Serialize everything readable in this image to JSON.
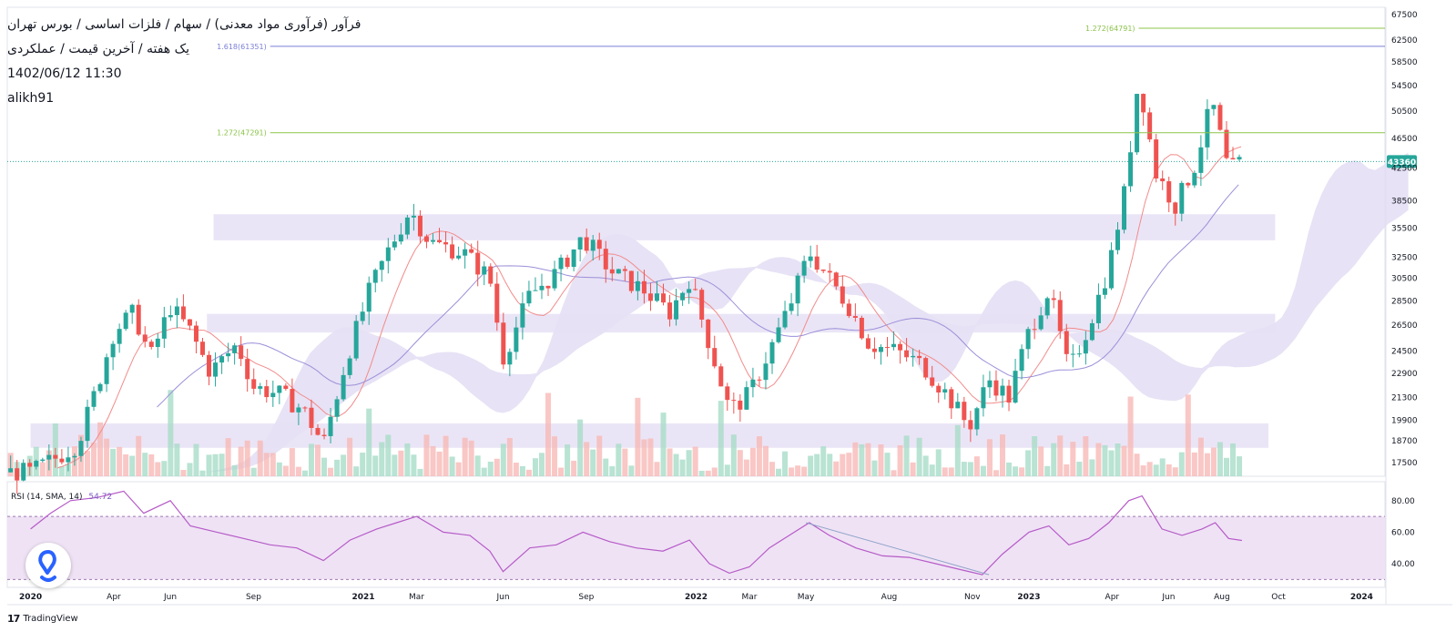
{
  "header": {
    "symbol_path": "فرآور (فرآوری مواد معدنی) / سهام / فلزات اساسی / بورس تهران",
    "interval_line": "یک هفته / آخرین قیمت / عملکردی",
    "timestamp": "1402/06/12 11:30",
    "author": "alikh91"
  },
  "branding": {
    "logo_mark": "17",
    "logo_text": "TradingView"
  },
  "colors": {
    "up": "#26a69a",
    "down": "#ef5350",
    "fib": "#8bc34a",
    "fib_purple": "#7b7fd6",
    "zone": "#e6e0f5",
    "rsi_line": "#b65bc7",
    "rsi_band": "#efe2f5",
    "conversion": "#f28b8b",
    "base": "#9c8fd9",
    "cloud_purple": "#e3ddf3",
    "cloud_red": "#fde3e3",
    "price_tag": "#26a69a"
  },
  "chart_data": [
    {
      "type": "candlestick",
      "timeframe": "weekly",
      "y_axis_ticks": [
        "67500",
        "62500",
        "58500",
        "54500",
        "50500",
        "46500",
        "42500",
        "38500",
        "35500",
        "32500",
        "30500",
        "28500",
        "26500",
        "24500",
        "22900",
        "21300",
        "19900",
        "18700",
        "17500"
      ],
      "y_scale": "log",
      "y_range": [
        16800,
        69000
      ],
      "x_axis_ticks": [
        {
          "label": "2020",
          "t": 2020.0
        },
        {
          "label": "Apr",
          "t": 2020.25
        },
        {
          "label": "Jun",
          "t": 2020.42
        },
        {
          "label": "Sep",
          "t": 2020.67
        },
        {
          "label": "2021",
          "t": 2021.0
        },
        {
          "label": "Mar",
          "t": 2021.16
        },
        {
          "label": "Jun",
          "t": 2021.42
        },
        {
          "label": "Sep",
          "t": 2021.67
        },
        {
          "label": "2022",
          "t": 2022.0
        },
        {
          "label": "Mar",
          "t": 2022.16
        },
        {
          "label": "May",
          "t": 2022.33
        },
        {
          "label": "Aug",
          "t": 2022.58
        },
        {
          "label": "Nov",
          "t": 2022.83
        },
        {
          "label": "2023",
          "t": 2023.0
        },
        {
          "label": "Apr",
          "t": 2023.25
        },
        {
          "label": "Jun",
          "t": 2023.42
        },
        {
          "label": "Aug",
          "t": 2023.58
        },
        {
          "label": "Oct",
          "t": 2023.75
        },
        {
          "label": "2024",
          "t": 2024.0
        }
      ],
      "last_price": "43360",
      "last_price_value": 43360,
      "fib_levels": [
        {
          "label": "1.272(64791)",
          "value": 64791,
          "color": "#8bc34a",
          "from_t": 2023.33
        },
        {
          "label": "1.618(61351)",
          "value": 61351,
          "color": "#7b7fd6",
          "from_t": 2020.72
        },
        {
          "label": "1.272(47291)",
          "value": 47291,
          "color": "#8bc34a",
          "from_t": 2020.72
        }
      ],
      "zones": [
        {
          "from_t": 2020.55,
          "to_t": 2023.74,
          "top": 37000,
          "bottom": 34200
        },
        {
          "from_t": 2020.53,
          "to_t": 2023.74,
          "top": 27400,
          "bottom": 25900
        },
        {
          "from_t": 2020.0,
          "to_t": 2023.72,
          "top": 19700,
          "bottom": 18300
        }
      ],
      "price_path": [
        [
          2020.0,
          17000
        ],
        [
          2020.08,
          17800
        ],
        [
          2020.14,
          18500
        ],
        [
          2020.2,
          22000
        ],
        [
          2020.25,
          26000
        ],
        [
          2020.31,
          27500
        ],
        [
          2020.36,
          24000
        ],
        [
          2020.42,
          28000
        ],
        [
          2020.48,
          26000
        ],
        [
          2020.54,
          23000
        ],
        [
          2020.62,
          25000
        ],
        [
          2020.67,
          22000
        ],
        [
          2020.75,
          21500
        ],
        [
          2020.82,
          20500
        ],
        [
          2020.88,
          18500
        ],
        [
          2020.95,
          24000
        ],
        [
          2021.02,
          29500
        ],
        [
          2021.08,
          33500
        ],
        [
          2021.14,
          37500
        ],
        [
          2021.2,
          34000
        ],
        [
          2021.3,
          33000
        ],
        [
          2021.38,
          30500
        ],
        [
          2021.42,
          24000
        ],
        [
          2021.5,
          29000
        ],
        [
          2021.58,
          31000
        ],
        [
          2021.66,
          34500
        ],
        [
          2021.75,
          31000
        ],
        [
          2021.84,
          29500
        ],
        [
          2021.92,
          27500
        ],
        [
          2021.98,
          30500
        ],
        [
          2022.04,
          25000
        ],
        [
          2022.1,
          20500
        ],
        [
          2022.16,
          21500
        ],
        [
          2022.22,
          24500
        ],
        [
          2022.28,
          28000
        ],
        [
          2022.34,
          33000
        ],
        [
          2022.4,
          30500
        ],
        [
          2022.46,
          28000
        ],
        [
          2022.52,
          25000
        ],
        [
          2022.6,
          24500
        ],
        [
          2022.68,
          23500
        ],
        [
          2022.76,
          21300
        ],
        [
          2022.82,
          19500
        ],
        [
          2022.88,
          22500
        ],
        [
          2022.94,
          21300
        ],
        [
          2023.0,
          26000
        ],
        [
          2023.06,
          29500
        ],
        [
          2023.12,
          23000
        ],
        [
          2023.18,
          26500
        ],
        [
          2023.24,
          31500
        ],
        [
          2023.29,
          40000
        ],
        [
          2023.33,
          56000
        ],
        [
          2023.38,
          42000
        ],
        [
          2023.44,
          38000
        ],
        [
          2023.5,
          43000
        ],
        [
          2023.55,
          52000
        ],
        [
          2023.6,
          42000
        ],
        [
          2023.64,
          43360
        ]
      ],
      "volume_ticks": "none",
      "rsi": {
        "title": "RSI (14, SMA, 14)",
        "value": "54.72",
        "ticks": [
          "80.00",
          "60.00",
          "40.00"
        ],
        "range": [
          25,
          92
        ],
        "band": [
          30,
          70
        ],
        "path": [
          [
            2020.0,
            62
          ],
          [
            2020.06,
            72
          ],
          [
            2020.12,
            80
          ],
          [
            2020.2,
            82
          ],
          [
            2020.28,
            86
          ],
          [
            2020.34,
            72
          ],
          [
            2020.42,
            80
          ],
          [
            2020.48,
            64
          ],
          [
            2020.56,
            60
          ],
          [
            2020.64,
            56
          ],
          [
            2020.72,
            52
          ],
          [
            2020.8,
            50
          ],
          [
            2020.88,
            42
          ],
          [
            2020.96,
            55
          ],
          [
            2021.04,
            62
          ],
          [
            2021.1,
            66
          ],
          [
            2021.16,
            70
          ],
          [
            2021.24,
            60
          ],
          [
            2021.32,
            58
          ],
          [
            2021.38,
            48
          ],
          [
            2021.42,
            35
          ],
          [
            2021.5,
            50
          ],
          [
            2021.58,
            52
          ],
          [
            2021.66,
            60
          ],
          [
            2021.74,
            54
          ],
          [
            2021.82,
            50
          ],
          [
            2021.9,
            48
          ],
          [
            2021.98,
            55
          ],
          [
            2022.04,
            40
          ],
          [
            2022.1,
            34
          ],
          [
            2022.16,
            38
          ],
          [
            2022.22,
            50
          ],
          [
            2022.28,
            58
          ],
          [
            2022.34,
            66
          ],
          [
            2022.4,
            58
          ],
          [
            2022.48,
            50
          ],
          [
            2022.56,
            45
          ],
          [
            2022.64,
            44
          ],
          [
            2022.72,
            40
          ],
          [
            2022.8,
            36
          ],
          [
            2022.86,
            33
          ],
          [
            2022.92,
            46
          ],
          [
            2023.0,
            60
          ],
          [
            2023.06,
            64
          ],
          [
            2023.12,
            52
          ],
          [
            2023.18,
            56
          ],
          [
            2023.24,
            66
          ],
          [
            2023.3,
            80
          ],
          [
            2023.34,
            83
          ],
          [
            2023.4,
            62
          ],
          [
            2023.46,
            58
          ],
          [
            2023.52,
            62
          ],
          [
            2023.56,
            66
          ],
          [
            2023.6,
            56
          ],
          [
            2023.64,
            54.72
          ]
        ],
        "trendline": [
          [
            2022.33,
            66
          ],
          [
            2022.88,
            33
          ]
        ]
      }
    }
  ]
}
